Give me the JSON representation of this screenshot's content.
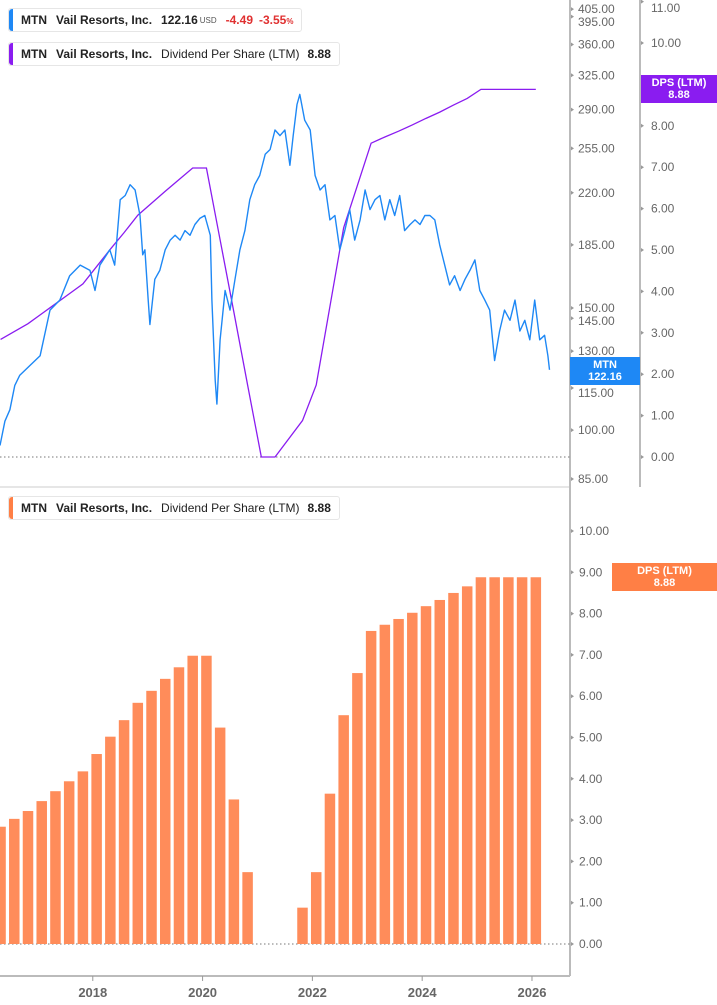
{
  "colors": {
    "price": "#1e88f5",
    "dps_line": "#8a1cf0",
    "dps_bars": "#ff8c5a",
    "dps_badge": "#ff7f45"
  },
  "legend_price": {
    "ticker": "MTN",
    "company": "Vail Resorts, Inc.",
    "price": "122.16",
    "currency": "USD",
    "change": "-4.49",
    "change_pct": "-3.55",
    "pct_sign": "%"
  },
  "legend_dps_top": {
    "ticker": "MTN",
    "company": "Vail Resorts, Inc.",
    "metric": "Dividend Per Share (LTM)",
    "value": "8.88"
  },
  "legend_dps_bottom": {
    "ticker": "MTN",
    "company": "Vail Resorts, Inc.",
    "metric": "Dividend Per Share (LTM)",
    "value": "8.88"
  },
  "badges": {
    "price": {
      "label": "MTN",
      "value": "122.16"
    },
    "dps_top": {
      "label": "DPS (LTM)",
      "value": "8.88"
    },
    "dps_bottom": {
      "label": "DPS (LTM)",
      "value": "8.88"
    }
  },
  "chart_data": [
    {
      "type": "line",
      "scale": "log",
      "ylim": [
        85,
        405
      ],
      "yticks": [
        "405.00",
        "395.00",
        "360.00",
        "325.00",
        "290.00",
        "255.00",
        "220.00",
        "185.00",
        "150.00",
        "145.00",
        "130.00",
        "115.00",
        "100.00",
        "85.00"
      ],
      "y2lim": [
        0,
        11
      ],
      "y2ticks": [
        "11.00",
        "10.00",
        "8.00",
        "7.00",
        "6.00",
        "5.00",
        "4.00",
        "3.00",
        "2.00",
        "1.00",
        "0.00"
      ],
      "series": [
        {
          "name": "MTN",
          "points": [
            [
              2016.31,
              95
            ],
            [
              2016.4,
              103
            ],
            [
              2016.49,
              107
            ],
            [
              2016.58,
              116
            ],
            [
              2016.67,
              120
            ],
            [
              2016.86,
              124
            ],
            [
              2017.04,
              128
            ],
            [
              2017.22,
              149
            ],
            [
              2017.4,
              154
            ],
            [
              2017.58,
              167
            ],
            [
              2017.77,
              173
            ],
            [
              2017.95,
              170
            ],
            [
              2018.04,
              159
            ],
            [
              2018.13,
              173
            ],
            [
              2018.31,
              182
            ],
            [
              2018.4,
              173
            ],
            [
              2018.5,
              215
            ],
            [
              2018.59,
              218
            ],
            [
              2018.68,
              226
            ],
            [
              2018.77,
              222
            ],
            [
              2018.86,
              204
            ],
            [
              2018.91,
              179
            ],
            [
              2018.95,
              182
            ],
            [
              2019.01,
              154
            ],
            [
              2019.04,
              142
            ],
            [
              2019.13,
              165
            ],
            [
              2019.22,
              170
            ],
            [
              2019.32,
              182
            ],
            [
              2019.41,
              188
            ],
            [
              2019.5,
              191
            ],
            [
              2019.59,
              188
            ],
            [
              2019.68,
              194
            ],
            [
              2019.77,
              191
            ],
            [
              2019.86,
              198
            ],
            [
              2019.95,
              202
            ],
            [
              2020.04,
              204
            ],
            [
              2020.14,
              191
            ],
            [
              2020.17,
              154
            ],
            [
              2020.23,
              118
            ],
            [
              2020.26,
              109
            ],
            [
              2020.32,
              135
            ],
            [
              2020.41,
              159
            ],
            [
              2020.5,
              149
            ],
            [
              2020.59,
              165
            ],
            [
              2020.68,
              182
            ],
            [
              2020.77,
              194
            ],
            [
              2020.86,
              215
            ],
            [
              2020.95,
              226
            ],
            [
              2021.04,
              233
            ],
            [
              2021.14,
              250
            ],
            [
              2021.23,
              254
            ],
            [
              2021.32,
              271
            ],
            [
              2021.41,
              266
            ],
            [
              2021.5,
              271
            ],
            [
              2021.59,
              241
            ],
            [
              2021.65,
              266
            ],
            [
              2021.72,
              295
            ],
            [
              2021.77,
              305
            ],
            [
              2021.86,
              280
            ],
            [
              2021.96,
              271
            ],
            [
              2022.05,
              233
            ],
            [
              2022.14,
              222
            ],
            [
              2022.23,
              226
            ],
            [
              2022.32,
              201
            ],
            [
              2022.41,
              204
            ],
            [
              2022.5,
              182
            ],
            [
              2022.59,
              194
            ],
            [
              2022.68,
              208
            ],
            [
              2022.77,
              188
            ],
            [
              2022.87,
              201
            ],
            [
              2022.96,
              222
            ],
            [
              2023.05,
              208
            ],
            [
              2023.14,
              215
            ],
            [
              2023.23,
              218
            ],
            [
              2023.32,
              201
            ],
            [
              2023.41,
              215
            ],
            [
              2023.5,
              204
            ],
            [
              2023.59,
              218
            ],
            [
              2023.68,
              194
            ],
            [
              2023.78,
              198
            ],
            [
              2023.87,
              201
            ],
            [
              2023.96,
              198
            ],
            [
              2024.05,
              204
            ],
            [
              2024.14,
              204
            ],
            [
              2024.23,
              201
            ],
            [
              2024.32,
              185
            ],
            [
              2024.41,
              173
            ],
            [
              2024.5,
              162
            ],
            [
              2024.59,
              167
            ],
            [
              2024.69,
              159
            ],
            [
              2024.78,
              165
            ],
            [
              2024.87,
              170
            ],
            [
              2024.96,
              176
            ],
            [
              2025.05,
              159
            ],
            [
              2025.14,
              154
            ],
            [
              2025.23,
              149
            ],
            [
              2025.32,
              126
            ],
            [
              2025.41,
              139
            ],
            [
              2025.5,
              149
            ],
            [
              2025.6,
              144
            ],
            [
              2025.69,
              154
            ],
            [
              2025.78,
              139
            ],
            [
              2025.87,
              144
            ],
            [
              2025.96,
              135
            ],
            [
              2026.05,
              154
            ],
            [
              2026.14,
              135
            ],
            [
              2026.23,
              137
            ],
            [
              2026.29,
              128
            ],
            [
              2026.32,
              122.16
            ]
          ]
        },
        {
          "name": "DPS (LTM)",
          "axis": "right",
          "source": "quarterly_dps"
        }
      ]
    },
    {
      "type": "bar",
      "ylim": [
        0,
        10
      ],
      "yticks": [
        "10.00",
        "9.00",
        "8.00",
        "7.00",
        "6.00",
        "5.00",
        "4.00",
        "3.00",
        "2.00",
        "1.00",
        "0.00"
      ],
      "xticks": [
        "2018",
        "2020",
        "2022",
        "2024",
        "2026"
      ],
      "start_year": 2016.32,
      "step_years": 0.25,
      "values": [
        2.84,
        3.03,
        3.22,
        3.46,
        3.7,
        3.94,
        4.18,
        4.6,
        5.02,
        5.42,
        5.84,
        6.13,
        6.42,
        6.7,
        6.98,
        6.98,
        5.24,
        3.5,
        1.74,
        0,
        0,
        null,
        0.88,
        1.74,
        3.64,
        5.54,
        6.56,
        7.58,
        7.73,
        7.87,
        8.02,
        8.18,
        8.33,
        8.5,
        8.66,
        8.88,
        8.88,
        8.88,
        8.88,
        8.88
      ]
    }
  ]
}
